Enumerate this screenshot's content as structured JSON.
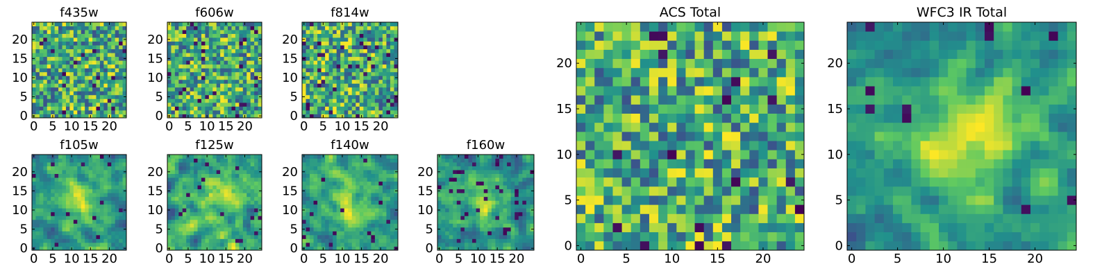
{
  "figure": {
    "description_type": "heatmap_grid",
    "colormap": "viridis",
    "colormap_stops": [
      "#440154",
      "#3b528b",
      "#21918c",
      "#5ec962",
      "#fde725"
    ]
  },
  "chart_data": [
    {
      "type": "heatmap",
      "title": "f435w",
      "grid_size": 25,
      "xlim": [
        -0.5,
        24.5
      ],
      "ylim": [
        -0.5,
        24.5
      ],
      "x_ticks": [
        0,
        5,
        10,
        15,
        20
      ],
      "y_ticks": [
        0,
        5,
        10,
        15,
        20
      ],
      "x_tick_labels": [
        "0",
        "5",
        "10",
        "15",
        "20"
      ],
      "y_tick_labels": [
        "0",
        "5",
        "10",
        "15",
        "20"
      ],
      "seed": 435,
      "smooth": 0,
      "center_peak": 0,
      "dark_fraction": 0.03
    },
    {
      "type": "heatmap",
      "title": "f606w",
      "grid_size": 25,
      "xlim": [
        -0.5,
        24.5
      ],
      "ylim": [
        -0.5,
        24.5
      ],
      "x_ticks": [
        0,
        5,
        10,
        15,
        20
      ],
      "y_ticks": [
        0,
        5,
        10,
        15,
        20
      ],
      "x_tick_labels": [
        "0",
        "5",
        "10",
        "15",
        "20"
      ],
      "y_tick_labels": [
        "0",
        "5",
        "10",
        "15",
        "20"
      ],
      "seed": 606,
      "smooth": 0,
      "center_peak": 0,
      "dark_fraction": 0.04
    },
    {
      "type": "heatmap",
      "title": "f814w",
      "grid_size": 25,
      "xlim": [
        -0.5,
        24.5
      ],
      "ylim": [
        -0.5,
        24.5
      ],
      "x_ticks": [
        0,
        5,
        10,
        15,
        20
      ],
      "y_ticks": [
        0,
        5,
        10,
        15,
        20
      ],
      "x_tick_labels": [
        "0",
        "5",
        "10",
        "15",
        "20"
      ],
      "y_tick_labels": [
        "0",
        "5",
        "10",
        "15",
        "20"
      ],
      "seed": 814,
      "smooth": 0,
      "center_peak": 0,
      "dark_fraction": 0.04
    },
    {
      "type": "heatmap",
      "title": "f105w",
      "grid_size": 25,
      "xlim": [
        -0.5,
        24.5
      ],
      "ylim": [
        -0.5,
        24.5
      ],
      "x_ticks": [
        0,
        5,
        10,
        15,
        20
      ],
      "y_ticks": [
        0,
        5,
        10,
        15,
        20
      ],
      "x_tick_labels": [
        "0",
        "5",
        "10",
        "15",
        "20"
      ],
      "y_tick_labels": [
        "0",
        "5",
        "10",
        "15",
        "20"
      ],
      "seed": 105,
      "smooth": 1,
      "center_peak": 0.3,
      "dark_fraction": 0.02
    },
    {
      "type": "heatmap",
      "title": "f125w",
      "grid_size": 25,
      "xlim": [
        -0.5,
        24.5
      ],
      "ylim": [
        -0.5,
        24.5
      ],
      "x_ticks": [
        0,
        5,
        10,
        15,
        20
      ],
      "y_ticks": [
        0,
        5,
        10,
        15,
        20
      ],
      "x_tick_labels": [
        "0",
        "5",
        "10",
        "15",
        "20"
      ],
      "y_tick_labels": [
        "0",
        "5",
        "10",
        "15",
        "20"
      ],
      "seed": 125,
      "smooth": 1,
      "center_peak": 0.2,
      "dark_fraction": 0.03
    },
    {
      "type": "heatmap",
      "title": "f140w",
      "grid_size": 25,
      "xlim": [
        -0.5,
        24.5
      ],
      "ylim": [
        -0.5,
        24.5
      ],
      "x_ticks": [
        0,
        5,
        10,
        15,
        20
      ],
      "y_ticks": [
        0,
        5,
        10,
        15,
        20
      ],
      "x_tick_labels": [
        "0",
        "5",
        "10",
        "15",
        "20"
      ],
      "y_tick_labels": [
        "0",
        "5",
        "10",
        "15",
        "20"
      ],
      "seed": 140,
      "smooth": 1,
      "center_peak": 0.35,
      "dark_fraction": 0.03
    },
    {
      "type": "heatmap",
      "title": "f160w",
      "grid_size": 25,
      "xlim": [
        -0.5,
        24.5
      ],
      "ylim": [
        -0.5,
        24.5
      ],
      "x_ticks": [
        0,
        5,
        10,
        15,
        20
      ],
      "y_ticks": [
        0,
        5,
        10,
        15,
        20
      ],
      "x_tick_labels": [
        "0",
        "5",
        "10",
        "15",
        "20"
      ],
      "y_tick_labels": [
        "0",
        "5",
        "10",
        "15",
        "20"
      ],
      "seed": 160,
      "smooth": 1,
      "center_peak": 0.35,
      "dark_fraction": 0.05
    },
    {
      "type": "heatmap",
      "title": "ACS Total",
      "grid_size": 25,
      "xlim": [
        -0.5,
        24.5
      ],
      "ylim": [
        -0.5,
        24.5
      ],
      "x_ticks": [
        0,
        5,
        10,
        15,
        20
      ],
      "y_ticks": [
        0,
        5,
        10,
        15,
        20
      ],
      "x_tick_labels": [
        "0",
        "5",
        "10",
        "15",
        "20"
      ],
      "y_tick_labels": [
        "0",
        "5",
        "10",
        "15",
        "20"
      ],
      "seed": 1999,
      "smooth": 0,
      "center_peak": 0,
      "dark_fraction": 0.03
    },
    {
      "type": "heatmap",
      "title": "WFC3 IR Total",
      "grid_size": 25,
      "xlim": [
        -0.5,
        24.5
      ],
      "ylim": [
        -0.5,
        24.5
      ],
      "x_ticks": [
        0,
        5,
        10,
        15,
        20
      ],
      "y_ticks": [
        0,
        5,
        10,
        15,
        20
      ],
      "x_tick_labels": [
        "0",
        "5",
        "10",
        "15",
        "20"
      ],
      "y_tick_labels": [
        "0",
        "5",
        "10",
        "15",
        "20"
      ],
      "seed": 3003,
      "smooth": 1,
      "center_peak": 0.45,
      "dark_fraction": 0.03
    }
  ]
}
